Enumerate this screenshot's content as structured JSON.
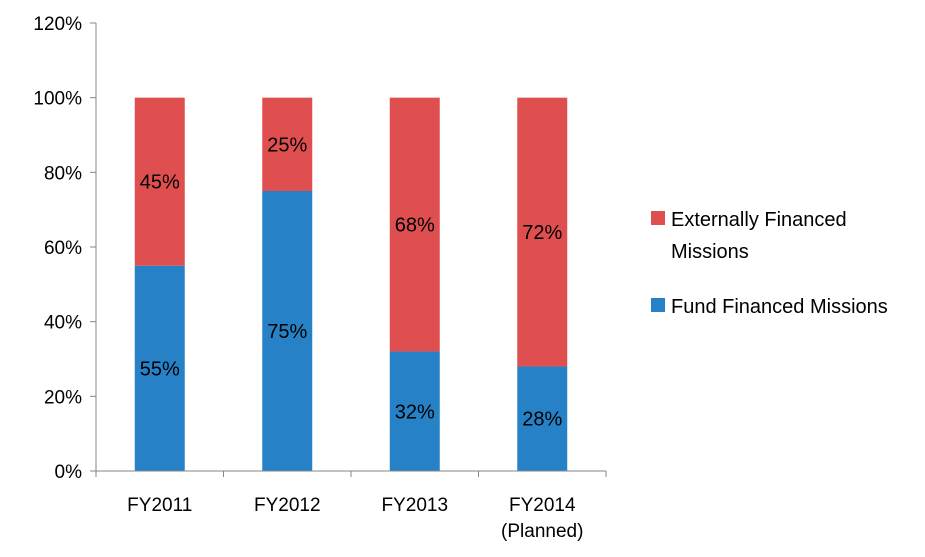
{
  "chart_data": {
    "type": "bar",
    "stacked": true,
    "categories": [
      "FY2011",
      "FY2012",
      "FY2013",
      "FY2014 (Planned)"
    ],
    "category_label_lines": [
      [
        "FY2011"
      ],
      [
        "FY2012"
      ],
      [
        "FY2013"
      ],
      [
        "FY2014",
        "(Planned)"
      ]
    ],
    "series": [
      {
        "name": "Fund Financed Missions",
        "color": "#2681c6",
        "values": [
          55,
          75,
          32,
          28
        ],
        "labels": [
          "55%",
          "75%",
          "32%",
          "28%"
        ]
      },
      {
        "name": "Externally Financed Missions",
        "color": "#e04f4f",
        "values": [
          45,
          25,
          68,
          72
        ],
        "labels": [
          "45%",
          "25%",
          "68%",
          "72%"
        ]
      }
    ],
    "ylim": [
      0,
      120
    ],
    "yticks": [
      0,
      20,
      40,
      60,
      80,
      100,
      120
    ],
    "ytick_labels": [
      "0%",
      "20%",
      "40%",
      "60%",
      "80%",
      "100%",
      "120%"
    ],
    "legend_position": "right",
    "legend_items": [
      {
        "lines": [
          "Externally Financed",
          "Missions"
        ],
        "color": "#e04f4f"
      },
      {
        "lines": [
          "Fund Financed Missions"
        ],
        "color": "#2681c6"
      }
    ],
    "grid": false
  }
}
